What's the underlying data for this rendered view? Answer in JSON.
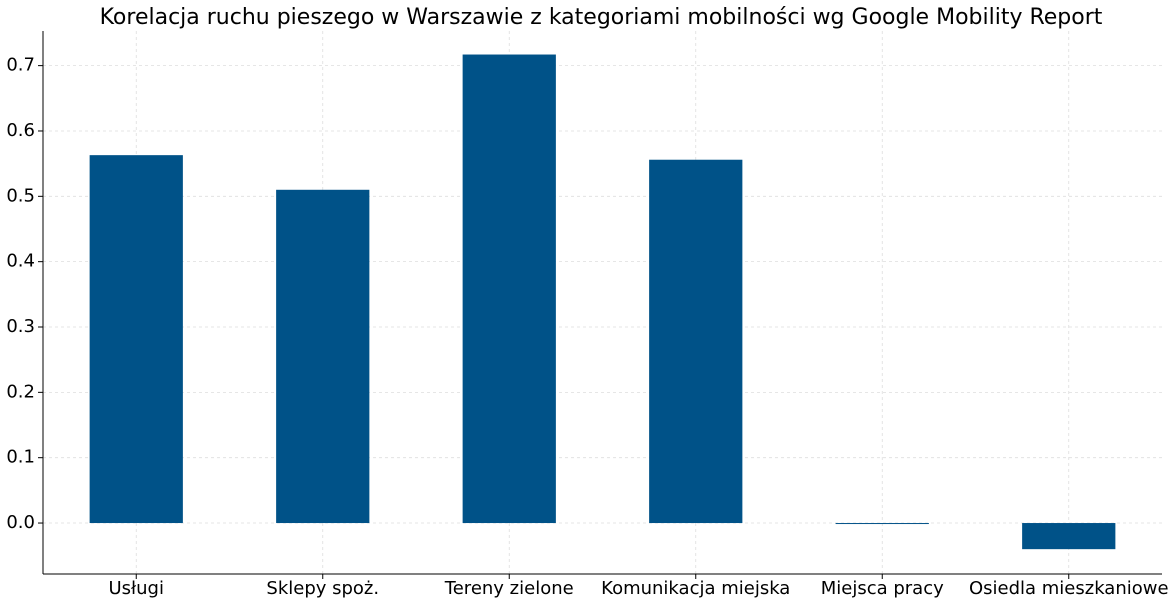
{
  "chart_data": {
    "type": "bar",
    "title": "Korelacja ruchu pieszego w Warszawie z kategoriami mobilności wg Google Mobility Report",
    "categories": [
      "Usługi",
      "Sklepy spoż.",
      "Tereny zielone",
      "Komunikacja miejska",
      "Miejsca pracy",
      "Osiedla mieszkaniowe"
    ],
    "values": [
      0.563,
      0.51,
      0.717,
      0.556,
      -0.001,
      -0.04
    ],
    "color": "#005288",
    "ylim": [
      -0.078,
      0.753
    ],
    "yticks": [
      {
        "value": 0,
        "label": "0.0"
      },
      0.1,
      0.2,
      0.3,
      0.4,
      0.5,
      0.6,
      0.7
    ],
    "grid": true
  }
}
